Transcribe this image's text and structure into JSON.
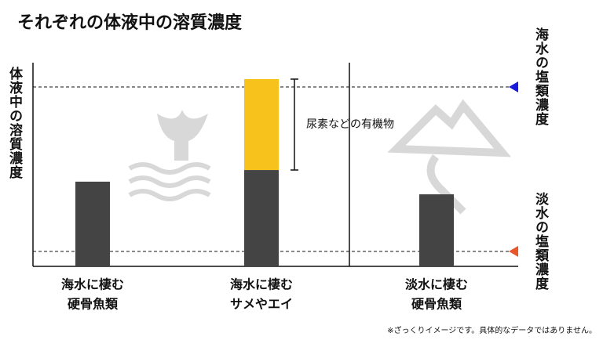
{
  "chart_data": {
    "type": "stacked_bar",
    "title": "それぞれの体液中の溶質濃度",
    "y_label": "体液中の溶質濃度",
    "categories": [
      [
        "海水に棲む",
        "硬骨魚類"
      ],
      [
        "海水に棲む",
        "サメやエイ"
      ],
      [
        "淡水に棲む",
        "硬骨魚類"
      ]
    ],
    "series": [
      {
        "color": "#444444",
        "values": [
          40.8,
          46.4,
          34.7
        ]
      },
      {
        "color": "#f8c21c",
        "values": [
          null,
          43.8,
          null
        ],
        "annotation": "尿素などの有機物"
      }
    ],
    "reference_lines": [
      {
        "label": "海水の塩類濃度",
        "value": 86.4,
        "color": "#1a1adb"
      },
      {
        "label": "淡水の塩類濃度",
        "value": 7.2,
        "color": "#e8572a"
      }
    ],
    "ylim": [
      0,
      100
    ],
    "footnote": "※ざっくりイメージです。具体的なデータではありません。"
  }
}
